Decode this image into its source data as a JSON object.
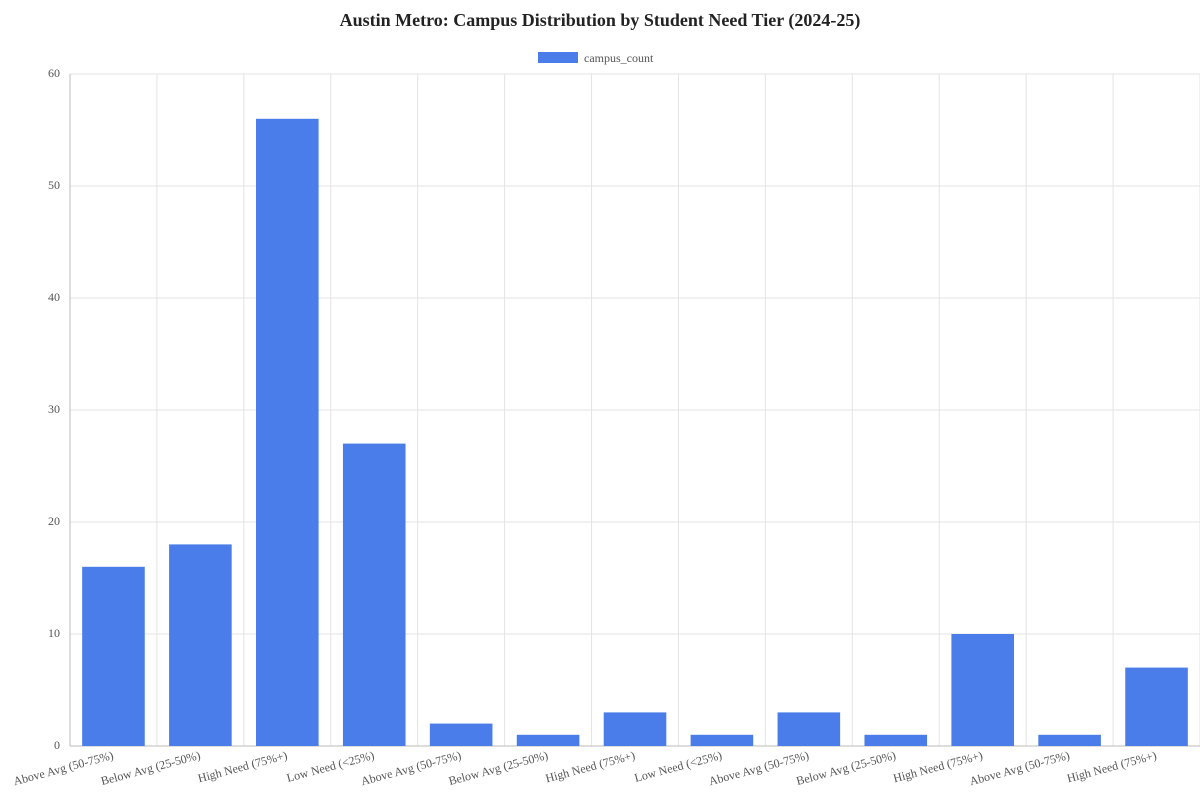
{
  "chart_data": {
    "type": "bar",
    "title": "Austin Metro: Campus Distribution by Student Need Tier (2024-25)",
    "categories": [
      "Above Avg (50-75%)",
      "Below Avg (25-50%)",
      "High Need (75%+)",
      "Low Need (<25%)",
      "Above Avg (50-75%)",
      "Below Avg (25-50%)",
      "High Need (75%+)",
      "Low Need (<25%)",
      "Above Avg (50-75%)",
      "Below Avg (25-50%)",
      "High Need (75%+)",
      "Above Avg (50-75%)",
      "High Need (75%+)"
    ],
    "series": [
      {
        "name": "campus_count",
        "color": "#4a7de9",
        "values": [
          16,
          18,
          56,
          27,
          2,
          1,
          3,
          1,
          3,
          1,
          10,
          1,
          7
        ]
      }
    ],
    "ylim": [
      0,
      60
    ],
    "yticks": [
      0,
      10,
      20,
      30,
      40,
      50,
      60
    ],
    "grid": true,
    "legend": "top"
  }
}
